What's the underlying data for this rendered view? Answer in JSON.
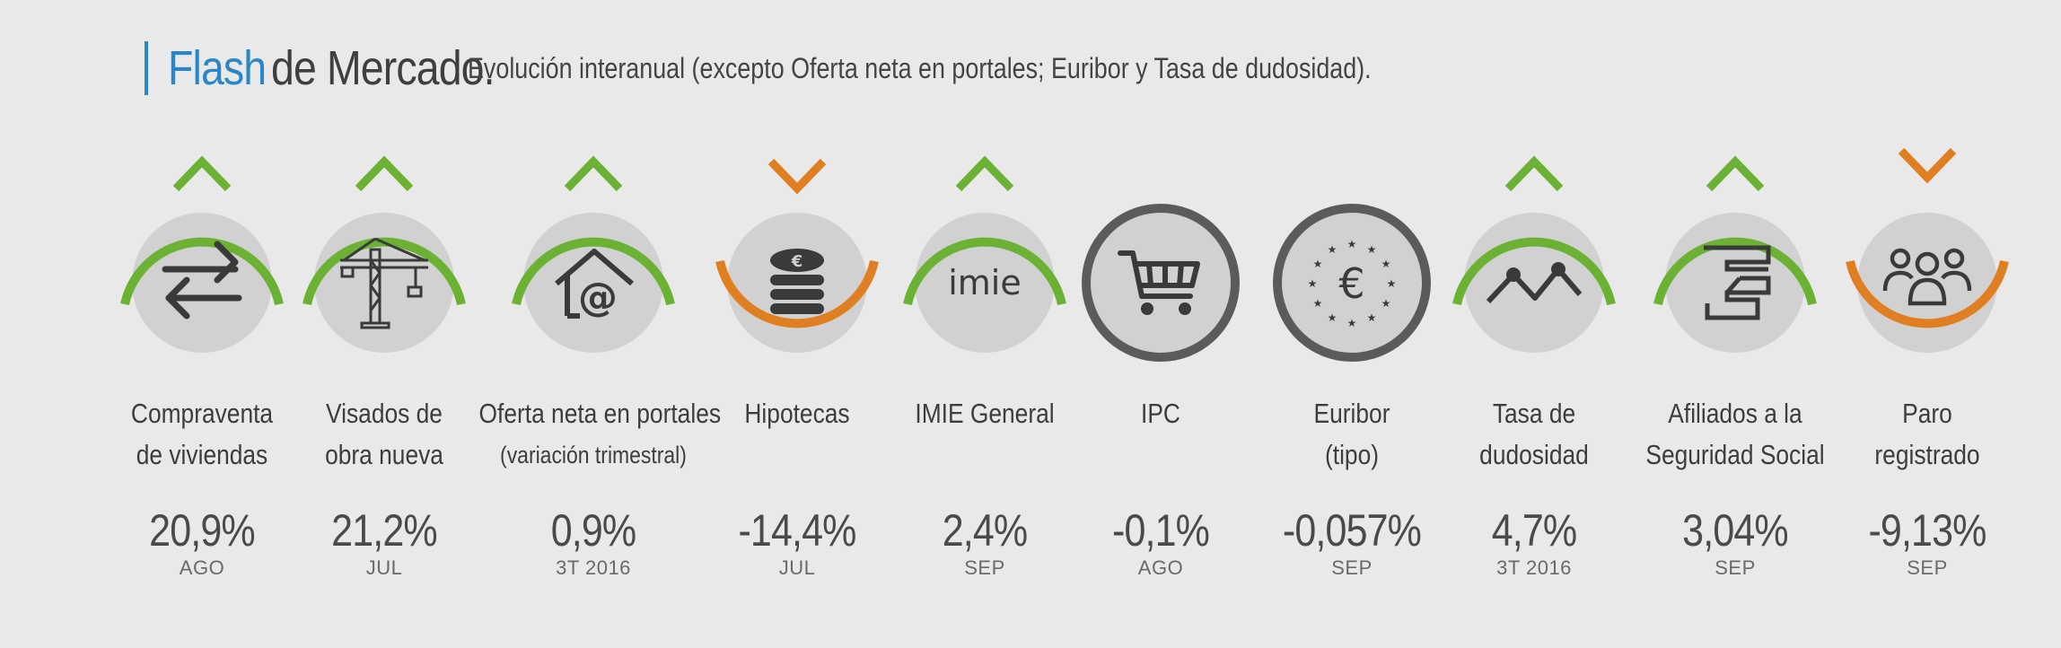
{
  "title": {
    "flash": "Flash",
    "rest": "de Mercado.",
    "subtitle": "Evolución interanual (excepto Oferta neta en portales; Euribor y Tasa de dudosidad)."
  },
  "colors": {
    "accent": "#2a86c8",
    "up": "#6bb234",
    "down": "#e07f22",
    "neutral": "#5b5b5b",
    "circle": "#d1d1d1"
  },
  "indicators": [
    {
      "id": "compraventa",
      "label1": "Compraventa",
      "label2": "de viviendas",
      "value": "20,9%",
      "period": "AGO",
      "trend": "up",
      "icon": "swap-arrows-icon"
    },
    {
      "id": "visados",
      "label1": "Visados de",
      "label2": "obra nueva",
      "value": "21,2%",
      "period": "JUL",
      "trend": "up",
      "icon": "crane-icon"
    },
    {
      "id": "oferta",
      "label1": "Oferta neta en portales",
      "label2": "(variación trimestral)",
      "value": "0,9%",
      "period": "3T 2016",
      "trend": "up",
      "icon": "house-at-icon"
    },
    {
      "id": "hipotecas",
      "label1": "Hipotecas",
      "label2": "",
      "value": "-14,4%",
      "period": "JUL",
      "trend": "down",
      "icon": "coins-icon"
    },
    {
      "id": "imie",
      "label1": "IMIE General",
      "label2": "",
      "value": "2,4%",
      "period": "SEP",
      "trend": "up",
      "icon": "imie-logo-icon"
    },
    {
      "id": "ipc",
      "label1": "IPC",
      "label2": "",
      "value": "-0,1%",
      "period": "AGO",
      "trend": "neutral",
      "icon": "cart-icon"
    },
    {
      "id": "euribor",
      "label1": "Euribor",
      "label2": "(tipo)",
      "value": "-0,057%",
      "period": "SEP",
      "trend": "neutral",
      "icon": "euro-stars-icon"
    },
    {
      "id": "dudosidad",
      "label1": "Tasa de",
      "label2": "dudosidad",
      "value": "4,7%",
      "period": "3T 2016",
      "trend": "up",
      "icon": "zigzag-icon"
    },
    {
      "id": "afiliados",
      "label1": "Afiliados a la",
      "label2": "Seguridad Social",
      "value": "3,04%",
      "period": "SEP",
      "trend": "up",
      "icon": "ss-logo-icon"
    },
    {
      "id": "paro",
      "label1": "Paro",
      "label2": "registrado",
      "value": "-9,13%",
      "period": "SEP",
      "trend": "down",
      "icon": "people-group-icon"
    }
  ]
}
